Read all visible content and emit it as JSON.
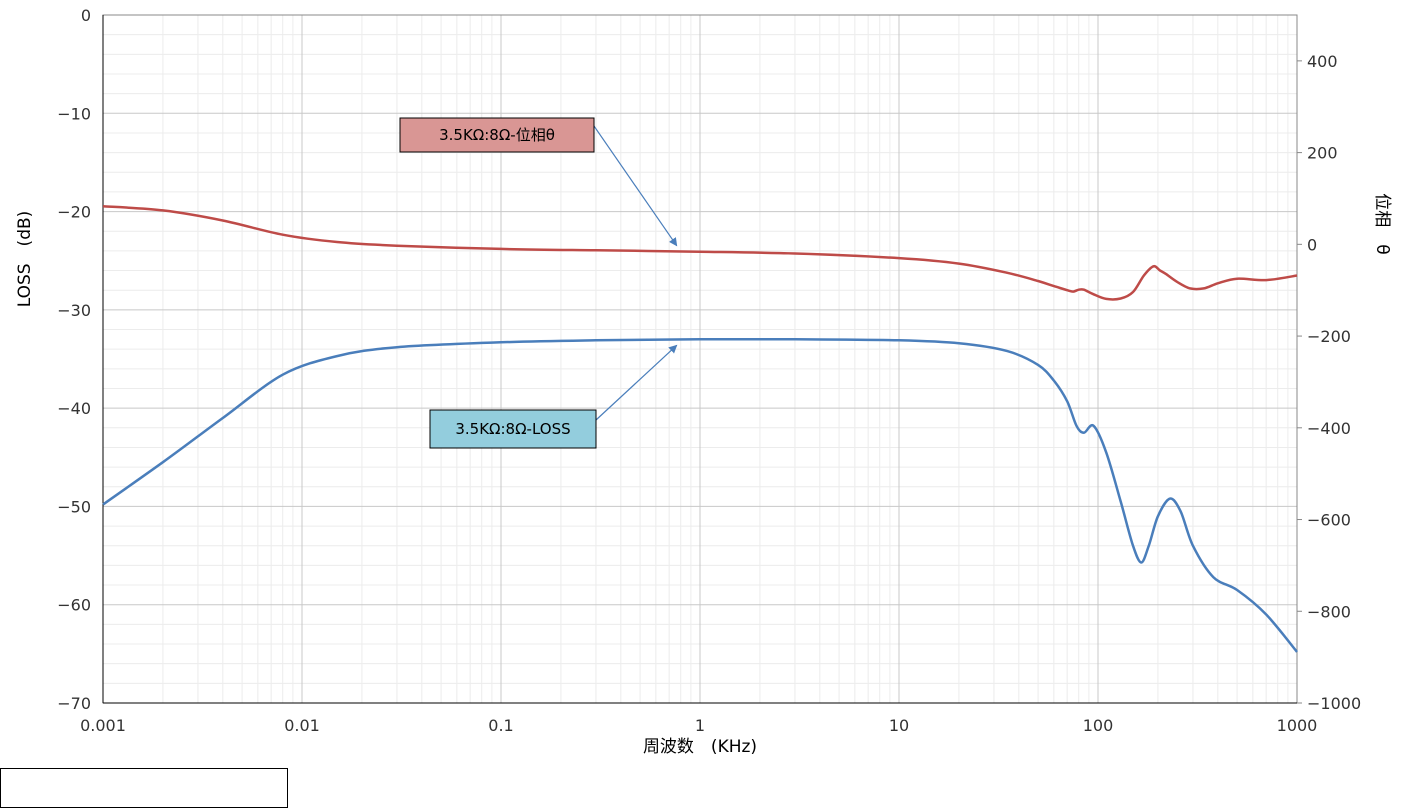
{
  "chart_data": {
    "type": "line",
    "xscale": "log",
    "xlim": [
      0.001,
      1000
    ],
    "ylim": [
      -70,
      0
    ],
    "y2lim": [
      -1000,
      500
    ],
    "x_ticks": [
      "0.001",
      "0.01",
      "0.1",
      "1",
      "10",
      "100",
      "1000"
    ],
    "y_ticks": [
      "0",
      "−10",
      "−20",
      "−30",
      "−40",
      "−50",
      "−60",
      "−70"
    ],
    "y2_ticks": [
      "400",
      "200",
      "0",
      "−200",
      "−400",
      "−600",
      "−800",
      "−1000"
    ],
    "xlabel": "周波数　(KHz)",
    "ylabel": "LOSS　(dB)",
    "y2label": "位相　θ",
    "grid": true,
    "series": [
      {
        "name": "3.5KΩ:8Ω-LOSS",
        "axis": "left",
        "color": "#4a7ebb",
        "x": [
          0.001,
          0.002,
          0.004,
          0.008,
          0.015,
          0.03,
          0.1,
          0.3,
          1,
          3,
          10,
          20,
          35,
          50,
          60,
          70,
          78,
          85,
          95,
          110,
          130,
          150,
          165,
          180,
          200,
          230,
          260,
          300,
          380,
          500,
          700,
          1000
        ],
        "values": [
          -49.8,
          -45.5,
          -41,
          -36.6,
          -34.7,
          -33.8,
          -33.3,
          -33.1,
          -33.0,
          -33.0,
          -33.1,
          -33.4,
          -34.2,
          -35.6,
          -37.2,
          -39.3,
          -41.8,
          -42.5,
          -41.8,
          -44.5,
          -49.5,
          -54.0,
          -55.7,
          -54.0,
          -51.0,
          -49.2,
          -50.5,
          -54.0,
          -57.2,
          -58.5,
          -61.0,
          -64.8
        ]
      },
      {
        "name": "3.5KΩ:8Ω-位相θ",
        "axis": "right",
        "color": "#be4b48",
        "x": [
          0.001,
          0.002,
          0.004,
          0.008,
          0.015,
          0.03,
          0.1,
          0.3,
          1,
          3,
          10,
          20,
          35,
          50,
          60,
          70,
          75,
          80,
          85,
          95,
          110,
          130,
          150,
          170,
          190,
          205,
          220,
          250,
          290,
          340,
          400,
          500,
          700,
          1000
        ],
        "values": [
          83,
          74,
          52,
          21,
          5,
          -3,
          -10,
          -13,
          -16,
          -20,
          -30,
          -42,
          -62,
          -80,
          -91,
          -100,
          -103,
          -99,
          -99,
          -109,
          -119,
          -118,
          -104,
          -68,
          -48,
          -57,
          -65,
          -82,
          -96,
          -96,
          -85,
          -75,
          -78,
          -68
        ]
      }
    ],
    "annotations": [
      {
        "text": "3.5KΩ:8Ω-位相θ",
        "x": 0.8,
        "y": -16,
        "axis": "right",
        "fill": "#d99694"
      },
      {
        "text": "3.5KΩ:8Ω-LOSS",
        "x": 0.8,
        "y": -33.0,
        "axis": "left",
        "fill": "#93cddd"
      }
    ]
  }
}
